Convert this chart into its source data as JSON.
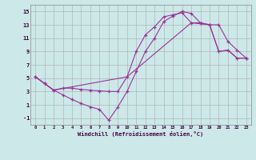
{
  "background_color": "#cce8e8",
  "grid_color": "#aaaaaa",
  "line_color": "#993399",
  "xlim": [
    -0.5,
    23.5
  ],
  "ylim": [
    -2,
    16
  ],
  "xticks": [
    0,
    1,
    2,
    3,
    4,
    5,
    6,
    7,
    8,
    9,
    10,
    11,
    12,
    13,
    14,
    15,
    16,
    17,
    18,
    19,
    20,
    21,
    22,
    23
  ],
  "yticks": [
    -1,
    1,
    3,
    5,
    7,
    9,
    11,
    13,
    15
  ],
  "xlabel": "Windchill (Refroidissement éolien,°C)",
  "line1_x": [
    0,
    1,
    2,
    3,
    4,
    5,
    6,
    7,
    8,
    9,
    10,
    11,
    12,
    13,
    14,
    15,
    16,
    17,
    18,
    19,
    20,
    21,
    22,
    23
  ],
  "line1_y": [
    5.2,
    4.2,
    3.2,
    3.5,
    3.5,
    3.3,
    3.2,
    3.1,
    3.0,
    3.0,
    5.2,
    9.0,
    11.5,
    12.7,
    14.2,
    14.5,
    14.8,
    13.3,
    13.3,
    13.0,
    9.0,
    9.2,
    8.0,
    8.0
  ],
  "line2_x": [
    0,
    1,
    2,
    3,
    4,
    5,
    6,
    7,
    8,
    9,
    10,
    11,
    12,
    13,
    14,
    15,
    16,
    17,
    18,
    19,
    20,
    21,
    22,
    23
  ],
  "line2_y": [
    5.2,
    4.2,
    3.2,
    2.5,
    1.8,
    1.2,
    0.7,
    0.3,
    -1.3,
    0.7,
    3.0,
    6.0,
    9.0,
    11.0,
    13.5,
    14.3,
    15.0,
    14.7,
    13.3,
    13.0,
    13.0,
    10.5,
    9.2,
    8.0
  ],
  "line3_x": [
    0,
    2,
    10,
    17,
    19,
    20,
    21,
    22,
    23
  ],
  "line3_y": [
    5.2,
    3.2,
    5.2,
    13.3,
    13.0,
    9.0,
    9.2,
    8.0,
    8.0
  ],
  "marker": "+"
}
